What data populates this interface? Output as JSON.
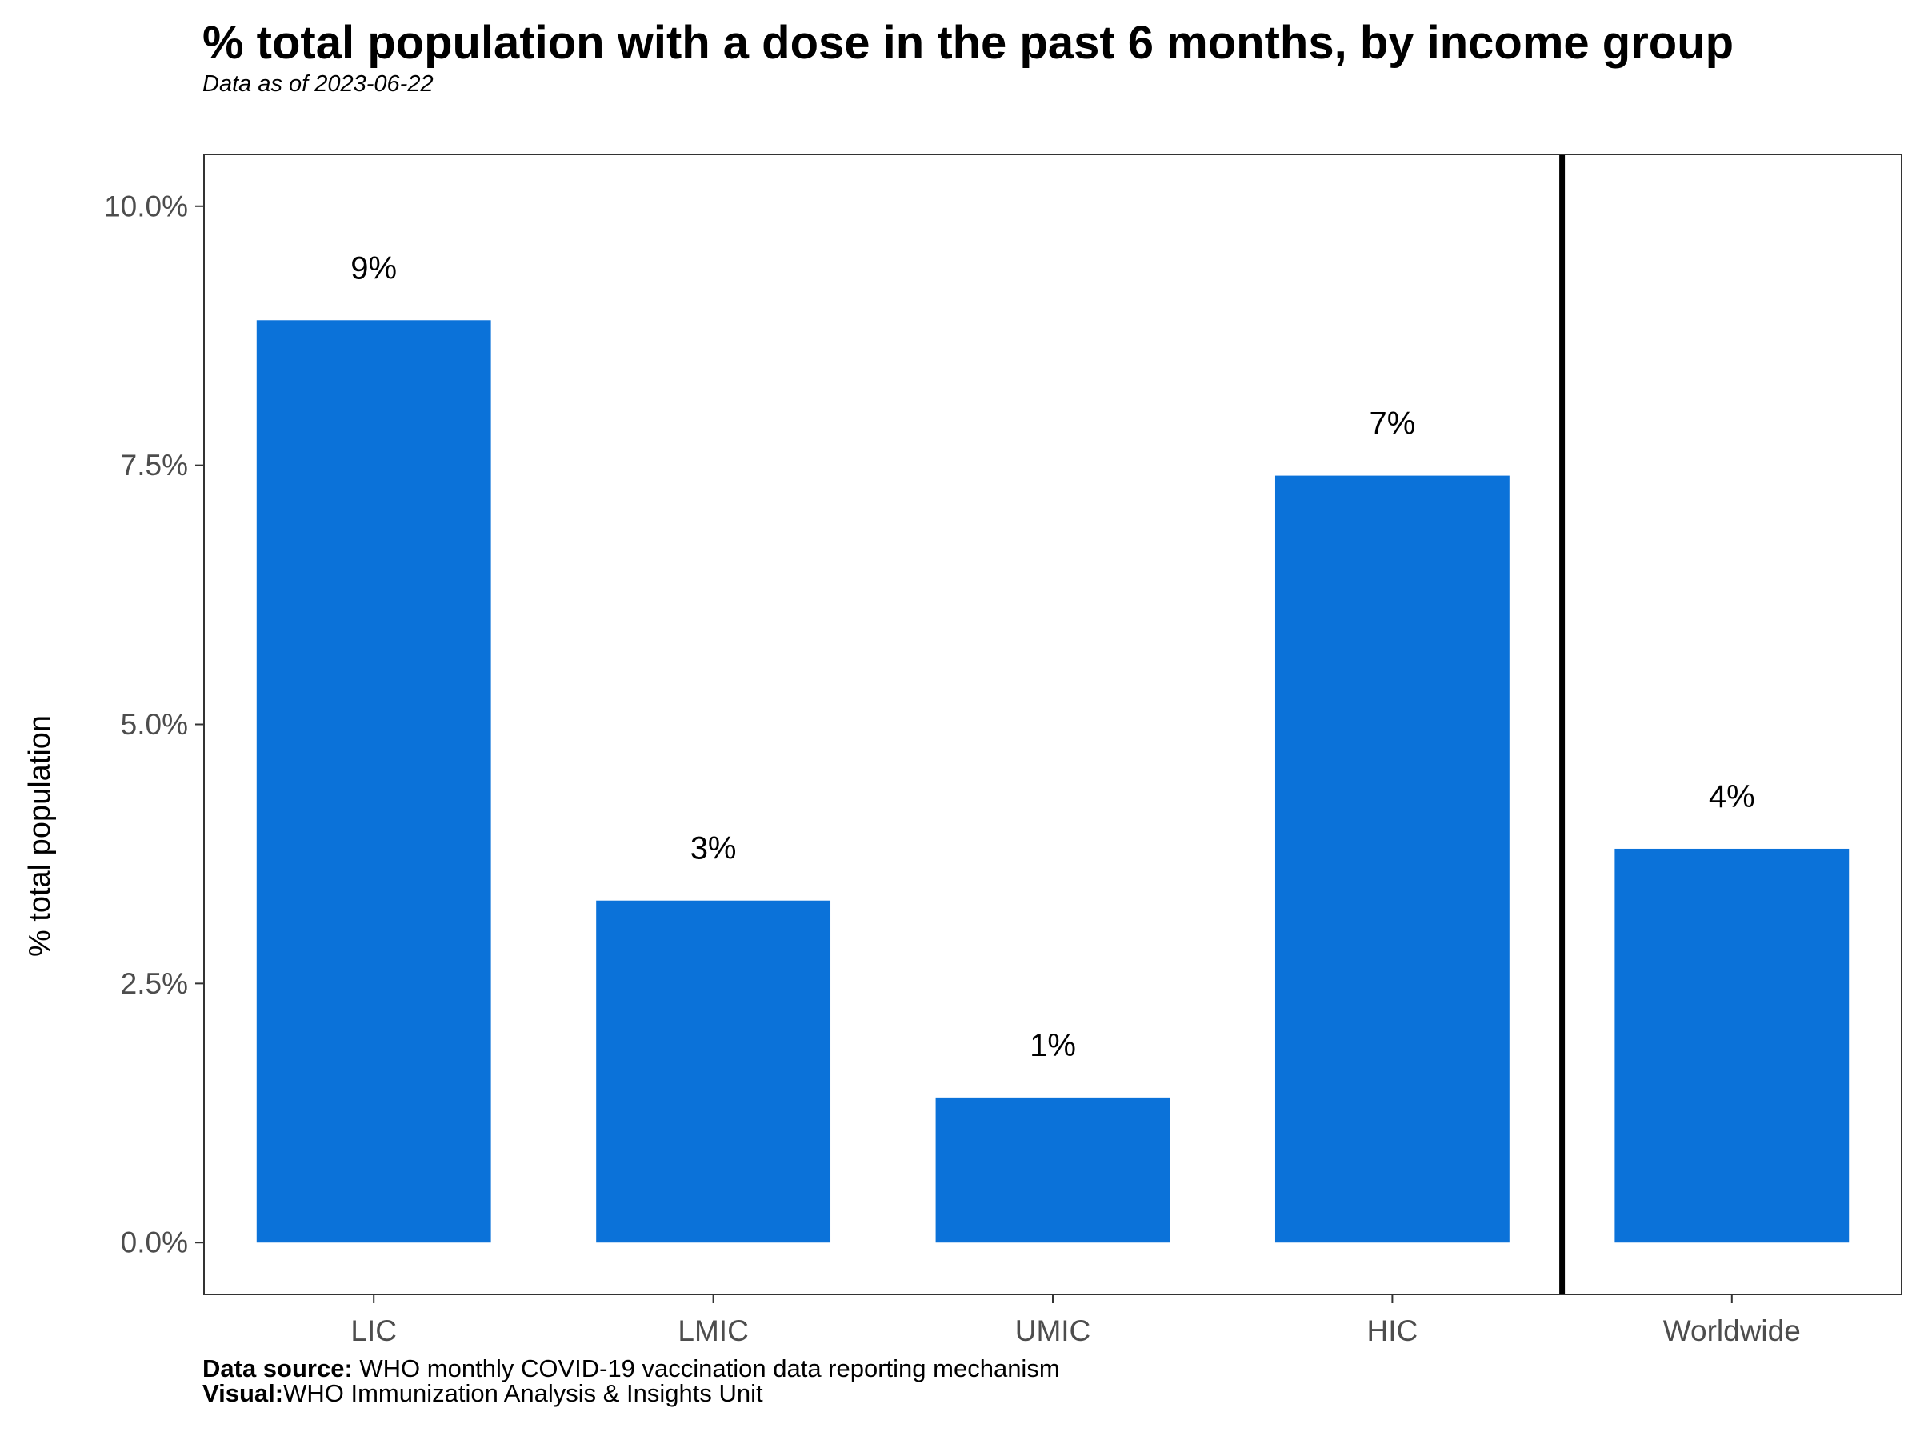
{
  "chart_data": {
    "type": "bar",
    "title": "% total population with a dose in the past 6 months, by income group",
    "subtitle": "Data as of 2023-06-22",
    "xlabel": "",
    "ylabel": "% total population",
    "categories": [
      "LIC",
      "LMIC",
      "UMIC",
      "HIC",
      "Worldwide"
    ],
    "values": [
      8.9,
      3.3,
      1.4,
      7.4,
      3.8
    ],
    "data_labels": [
      "9%",
      "3%",
      "1%",
      "7%",
      "4%"
    ],
    "ylim": [
      -0.5,
      10.5
    ],
    "yticks": [
      0,
      2.5,
      5.0,
      7.5,
      10.0
    ],
    "ytick_labels": [
      "0.0%",
      "2.5%",
      "5.0%",
      "7.5%",
      "10.0%"
    ],
    "separator_after_category": "HIC",
    "grid": false,
    "legend": "none",
    "bar_color": "#0B72D9",
    "axis_text_color": "#4D4D4D"
  },
  "caption": {
    "source_label": "Data source:",
    "source_text": " WHO monthly COVID-19 vaccination data reporting mechanism",
    "visual_label": "Visual:",
    "visual_text": "WHO Immunization Analysis & Insights Unit"
  }
}
